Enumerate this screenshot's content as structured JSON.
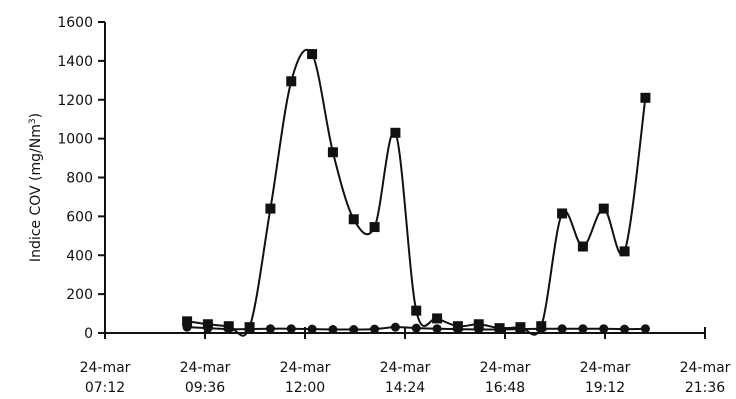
{
  "chart_data": {
    "type": "line",
    "title": "",
    "ylabel": "Indice COV (mg/Nm",
    "ylabel_sup": "3",
    "ylabel_close": ")",
    "xlabel": "",
    "ylim": [
      0,
      1600
    ],
    "yticks": [
      0,
      200,
      400,
      600,
      800,
      1000,
      1200,
      1400,
      1600
    ],
    "xlim_hours": [
      7.2,
      21.6
    ],
    "xticks": [
      {
        "t": 7.2,
        "line1": "24-mar",
        "line2": "07:12"
      },
      {
        "t": 9.6,
        "line1": "24-mar",
        "line2": "09:36"
      },
      {
        "t": 12.0,
        "line1": "24-mar",
        "line2": "12:00"
      },
      {
        "t": 14.4,
        "line1": "24-mar",
        "line2": "14:24"
      },
      {
        "t": 16.8,
        "line1": "24-mar",
        "line2": "16:48"
      },
      {
        "t": 19.2,
        "line1": "24-mar",
        "line2": "19:12"
      },
      {
        "t": 21.6,
        "line1": "24-mar",
        "line2": "21:36"
      }
    ],
    "grid": false,
    "legend": "none",
    "series": [
      {
        "marker": "square",
        "color": "#111111",
        "points": [
          [
            9.17,
            60
          ],
          [
            9.67,
            45
          ],
          [
            10.17,
            35
          ],
          [
            10.67,
            30
          ],
          [
            11.17,
            640
          ],
          [
            11.67,
            1295
          ],
          [
            12.17,
            1435
          ],
          [
            12.67,
            930
          ],
          [
            13.17,
            585
          ],
          [
            13.67,
            545
          ],
          [
            14.17,
            1030
          ],
          [
            14.67,
            115
          ],
          [
            15.17,
            75
          ],
          [
            15.67,
            35
          ],
          [
            16.17,
            45
          ],
          [
            16.67,
            25
          ],
          [
            17.17,
            30
          ],
          [
            17.67,
            35
          ],
          [
            18.17,
            615
          ],
          [
            18.67,
            445
          ],
          [
            19.17,
            640
          ],
          [
            19.67,
            420
          ],
          [
            20.17,
            1210
          ]
        ]
      },
      {
        "marker": "circle",
        "color": "#111111",
        "points": [
          [
            9.17,
            30
          ],
          [
            9.67,
            25
          ],
          [
            10.17,
            20
          ],
          [
            10.67,
            20
          ],
          [
            11.17,
            22
          ],
          [
            11.67,
            22
          ],
          [
            12.17,
            20
          ],
          [
            12.67,
            18
          ],
          [
            13.17,
            18
          ],
          [
            13.67,
            20
          ],
          [
            14.17,
            30
          ],
          [
            14.67,
            25
          ],
          [
            15.17,
            22
          ],
          [
            15.67,
            20
          ],
          [
            16.17,
            18
          ],
          [
            16.67,
            18
          ],
          [
            17.17,
            20
          ],
          [
            17.67,
            22
          ],
          [
            18.17,
            22
          ],
          [
            18.67,
            22
          ],
          [
            19.17,
            22
          ],
          [
            19.67,
            20
          ],
          [
            20.17,
            22
          ]
        ]
      }
    ]
  }
}
